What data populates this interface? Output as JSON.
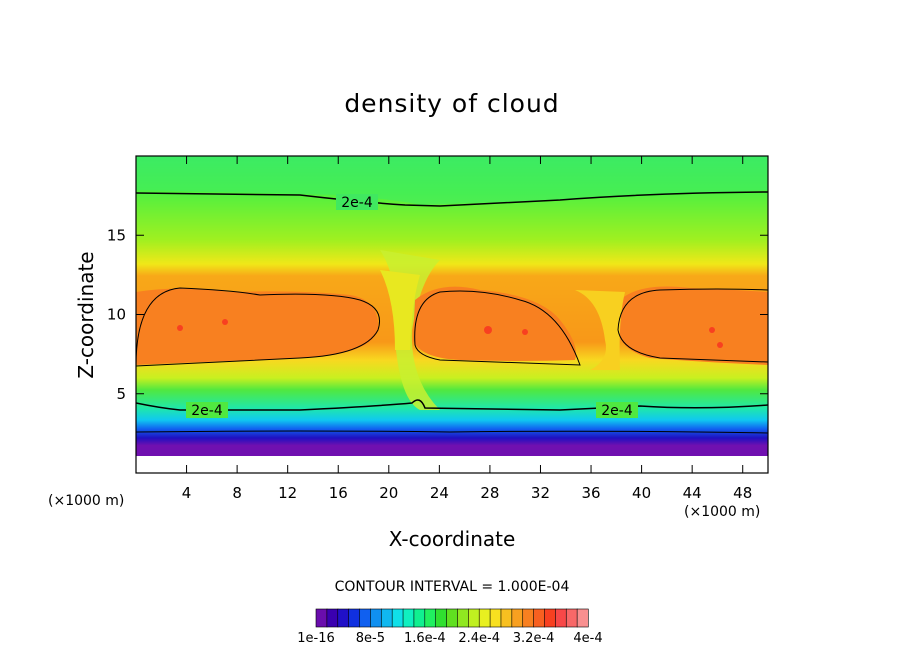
{
  "chart_data": {
    "type": "heatmap",
    "title": "density of cloud",
    "xlabel": "X-coordinate",
    "ylabel": "Z-coordinate",
    "x_unit": "(×1000 m)",
    "z_unit": "(×1000 m)",
    "xlim": [
      0,
      50
    ],
    "ylim": [
      0,
      20
    ],
    "x_ticks": [
      "4",
      "8",
      "12",
      "16",
      "20",
      "24",
      "28",
      "32",
      "36",
      "40",
      "44",
      "48"
    ],
    "y_ticks": [
      "5",
      "10",
      "15"
    ],
    "contour_interval_text": "CONTOUR INTERVAL = 1.000E-04",
    "contour_labels": [
      "2e-4",
      "2e-4",
      "2e-4"
    ],
    "colorbar": {
      "tick_labels": [
        "1e-16",
        "8e-5",
        "1.6e-4",
        "2.4e-4",
        "3.2e-4",
        "4e-4"
      ],
      "colors": [
        "#6a0dad",
        "#3a00b0",
        "#2010c8",
        "#1030e0",
        "#1060f0",
        "#1090f0",
        "#10b8f0",
        "#10e0e8",
        "#10f0c0",
        "#10f090",
        "#20f060",
        "#30e030",
        "#60e020",
        "#90e820",
        "#c0f020",
        "#e8f020",
        "#f8e020",
        "#f8c020",
        "#f8a020",
        "#f88020",
        "#f86020",
        "#f84020",
        "#f84848",
        "#f86868",
        "#f89090"
      ]
    }
  }
}
